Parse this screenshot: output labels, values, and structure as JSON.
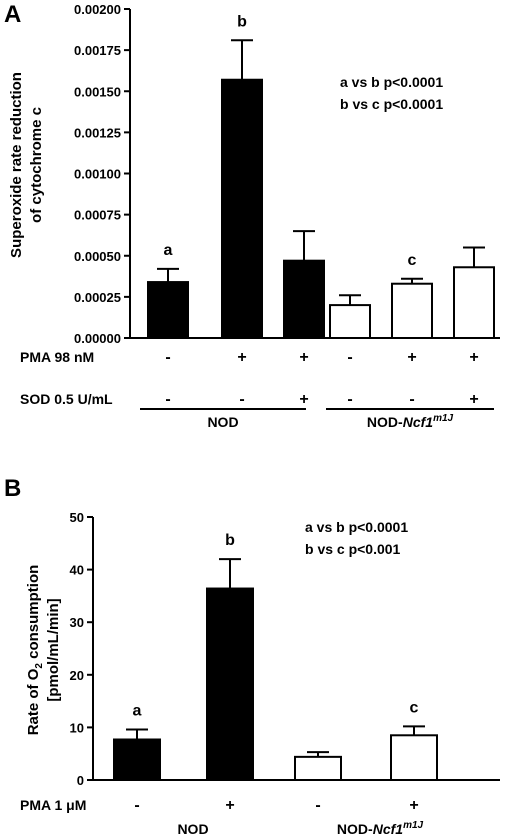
{
  "colors": {
    "filled_bar": "#000000",
    "open_bar": "#ffffff",
    "axis": "#000000"
  },
  "chart_data": [
    {
      "panel_label": "A",
      "type": "bar",
      "ylabel_line1": "Superoxide rate reduction",
      "ylabel_line2": "of cytochrome c",
      "ylim": [
        0,
        0.002
      ],
      "yticks": [
        "0.00000",
        "0.00025",
        "0.00050",
        "0.00075",
        "0.00100",
        "0.00125",
        "0.00150",
        "0.00175",
        "0.00200"
      ],
      "bars": [
        {
          "value": 0.00034,
          "error": 8e-05,
          "fill": "filled",
          "letter": "a"
        },
        {
          "value": 0.00157,
          "error": 0.00024,
          "fill": "filled",
          "letter": "b"
        },
        {
          "value": 0.00047,
          "error": 0.00018,
          "fill": "filled",
          "letter": ""
        },
        {
          "value": 0.0002,
          "error": 6e-05,
          "fill": "open",
          "letter": ""
        },
        {
          "value": 0.00033,
          "error": 3e-05,
          "fill": "open",
          "letter": "c"
        },
        {
          "value": 0.00043,
          "error": 0.00012,
          "fill": "open",
          "letter": ""
        }
      ],
      "stats_lines": [
        "a vs b p<0.0001",
        "b vs c p<0.0001"
      ],
      "treatment_rows": [
        {
          "label": "PMA 98 nM",
          "signs": [
            "-",
            "+",
            "+",
            "-",
            "+",
            "+"
          ]
        },
        {
          "label": "SOD 0.5 U/mL",
          "signs": [
            "-",
            "-",
            "+",
            "-",
            "-",
            "+"
          ]
        }
      ],
      "groups": [
        {
          "label": "NOD",
          "italic": "",
          "sup": ""
        },
        {
          "label": "NOD-",
          "italic": "Ncf1",
          "sup": "m1J"
        }
      ]
    },
    {
      "panel_label": "B",
      "type": "bar",
      "ylabel_line1_pre": "Rate of O",
      "ylabel_line1_sub": "2",
      "ylabel_line1_post": " consumption",
      "ylabel_line2": "[pmol/mL/min]",
      "ylim": [
        0,
        50
      ],
      "yticks": [
        "0",
        "10",
        "20",
        "30",
        "40",
        "50"
      ],
      "bars": [
        {
          "value": 7.7,
          "error": 1.9,
          "fill": "filled",
          "letter": "a"
        },
        {
          "value": 36.4,
          "error": 5.6,
          "fill": "filled",
          "letter": "b"
        },
        {
          "value": 4.4,
          "error": 0.9,
          "fill": "open",
          "letter": ""
        },
        {
          "value": 8.5,
          "error": 1.7,
          "fill": "open",
          "letter": "c"
        }
      ],
      "stats_lines": [
        "a vs b p<0.0001",
        "b vs c p<0.001"
      ],
      "treatment_rows": [
        {
          "label": "PMA 1 μM",
          "signs": [
            "-",
            "+",
            "-",
            "+"
          ]
        }
      ],
      "groups": [
        {
          "label": "NOD",
          "italic": "",
          "sup": ""
        },
        {
          "label": "NOD-",
          "italic": "Ncf1",
          "sup": "m1J"
        }
      ]
    }
  ]
}
